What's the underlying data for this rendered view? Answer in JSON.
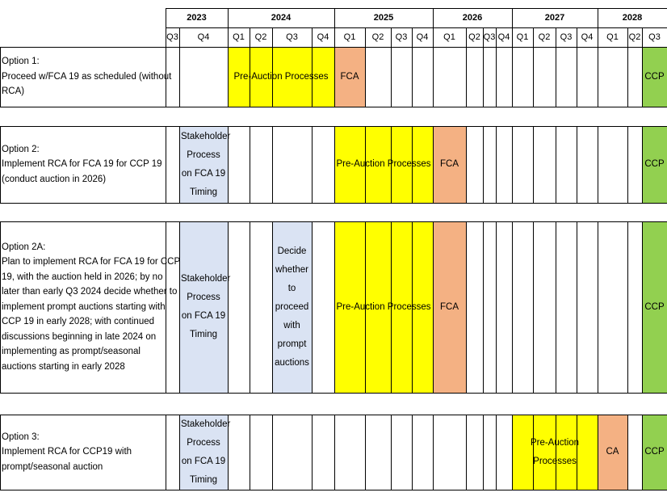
{
  "chart_data": {
    "type": "table",
    "years": [
      {
        "label": "2023",
        "quarters": [
          "Q3",
          "Q4"
        ]
      },
      {
        "label": "2024",
        "quarters": [
          "Q1",
          "Q2",
          "Q3",
          "Q4"
        ]
      },
      {
        "label": "2025",
        "quarters": [
          "Q1",
          "Q2",
          "Q3",
          "Q4"
        ]
      },
      {
        "label": "2026",
        "quarters": [
          "Q1",
          "Q2",
          "Q3",
          "Q4"
        ]
      },
      {
        "label": "2027",
        "quarters": [
          "Q1",
          "Q2",
          "Q3",
          "Q4"
        ]
      },
      {
        "label": "2028",
        "quarters": [
          "Q1",
          "Q2",
          "Q3"
        ]
      }
    ],
    "options": [
      {
        "lines": [
          "Option 1:",
          "Proceed w/FCA 19 as scheduled (without",
          "RCA)"
        ],
        "bars": [
          {
            "label": "Pre-Auction Processes",
            "color": "#ffff00",
            "start": "2024 Q1",
            "end": "2024 Q4"
          },
          {
            "label": "FCA",
            "color": "#f4b183",
            "start": "2025 Q1",
            "end": "2025 Q1"
          },
          {
            "label": "CCP",
            "color": "#92d050",
            "start": "2028 Q3",
            "end": "2028 Q3"
          }
        ]
      },
      {
        "lines": [
          "Option 2:",
          "Implement RCA for FCA 19 for CCP 19",
          "(conduct auction in 2026)"
        ],
        "bars": [
          {
            "label": "Stakeholder Process on FCA 19 Timing",
            "color": "#dae3f3",
            "start": "2023 Q4",
            "end": "2023 Q4"
          },
          {
            "label": "Pre-Auction Processes",
            "color": "#ffff00",
            "start": "2025 Q1",
            "end": "2025 Q4"
          },
          {
            "label": "FCA",
            "color": "#f4b183",
            "start": "2026 Q1",
            "end": "2026 Q1"
          },
          {
            "label": "CCP",
            "color": "#92d050",
            "start": "2028 Q3",
            "end": "2028 Q3"
          }
        ]
      },
      {
        "lines": [
          "Option 2A:",
          "Plan to implement RCA for FCA 19 for CCP",
          "19, with the auction held in 2026; by no",
          "later than early Q3 2024 decide whether to",
          "implement prompt auctions starting with",
          "CCP 19 in early 2028; with continued",
          "discussions beginning in late 2024 on",
          "implementing as prompt/seasonal",
          "auctions starting in early 2028"
        ],
        "bars": [
          {
            "label": "Stakeholder Process on FCA 19 Timing",
            "color": "#dae3f3",
            "start": "2023 Q4",
            "end": "2023 Q4"
          },
          {
            "label": "Decide whether to proceed with prompt auctions",
            "color": "#dae3f3",
            "start": "2024 Q3",
            "end": "2024 Q3"
          },
          {
            "label": "Pre-Auction Processes",
            "color": "#ffff00",
            "start": "2025 Q1",
            "end": "2025 Q4"
          },
          {
            "label": "FCA",
            "color": "#f4b183",
            "start": "2026 Q1",
            "end": "2026 Q1"
          },
          {
            "label": "CCP",
            "color": "#92d050",
            "start": "2028 Q3",
            "end": "2028 Q3"
          }
        ]
      },
      {
        "lines": [
          "Option 3:",
          "Implement RCA for CCP19 with",
          "prompt/seasonal auction"
        ],
        "bars": [
          {
            "label": "Stakeholder Process on FCA 19 Timing",
            "color": "#dae3f3",
            "start": "2023 Q4",
            "end": "2023 Q4"
          },
          {
            "label": "Pre-Auction Processes",
            "color": "#ffff00",
            "start": "2027 Q1",
            "end": "2027 Q4"
          },
          {
            "label": "CA",
            "color": "#f4b183",
            "start": "2028 Q1",
            "end": "2028 Q1"
          },
          {
            "label": "CCP",
            "color": "#92d050",
            "start": "2028 Q3",
            "end": "2028 Q3"
          }
        ]
      }
    ]
  }
}
